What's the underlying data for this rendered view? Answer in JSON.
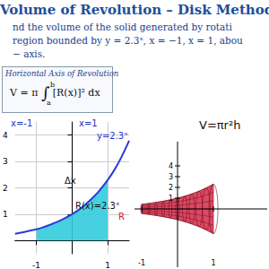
{
  "header": {
    "title": "Volume of Revolution – Disk Method"
  },
  "problem": [
    "nd the volume of the solid generated by rotati",
    "region bounded by y = 2.3ˣ, x = −1, x = 1, abou",
    "− axis."
  ],
  "formula_box": {
    "heading": "Horizontal Axis of Revolution",
    "lhs": "V = π",
    "integral": "∫",
    "upper": "b",
    "lower": "a",
    "integrand": "[R(x)]² dx"
  },
  "annotations": [
    "x=-1",
    "x=1",
    "y=2.3ˣ",
    "Δx",
    "R(x)=2.3ˣ",
    "R",
    "V=πr²h"
  ],
  "chart_data": {
    "type": "line",
    "x": [
      -1.6,
      -1.4,
      -1.2,
      -1,
      -0.8,
      -0.6,
      -0.4,
      -0.2,
      0,
      0.2,
      0.4,
      0.6,
      0.8,
      1,
      1.2,
      1.4,
      1.6
    ],
    "values": [
      0.26,
      0.31,
      0.37,
      0.43,
      0.51,
      0.61,
      0.72,
      0.85,
      1,
      1.18,
      1.4,
      1.65,
      1.95,
      2.3,
      2.71,
      3.21,
      3.79
    ],
    "color": "#2b3bd6",
    "region_x": [
      -1,
      1
    ],
    "region_color": "#33ccdd",
    "xlim": [
      -1.6,
      1.6
    ],
    "xticks": [
      -1,
      1
    ],
    "ylim": [
      -0.5,
      4.5
    ],
    "yticks": [
      1,
      2,
      3,
      4
    ],
    "grid": true
  },
  "solid_plot": {
    "type": "surface",
    "color": "#d42a4a",
    "xticks": [
      -1,
      1
    ],
    "yticks": [
      1,
      2,
      3,
      4
    ]
  }
}
